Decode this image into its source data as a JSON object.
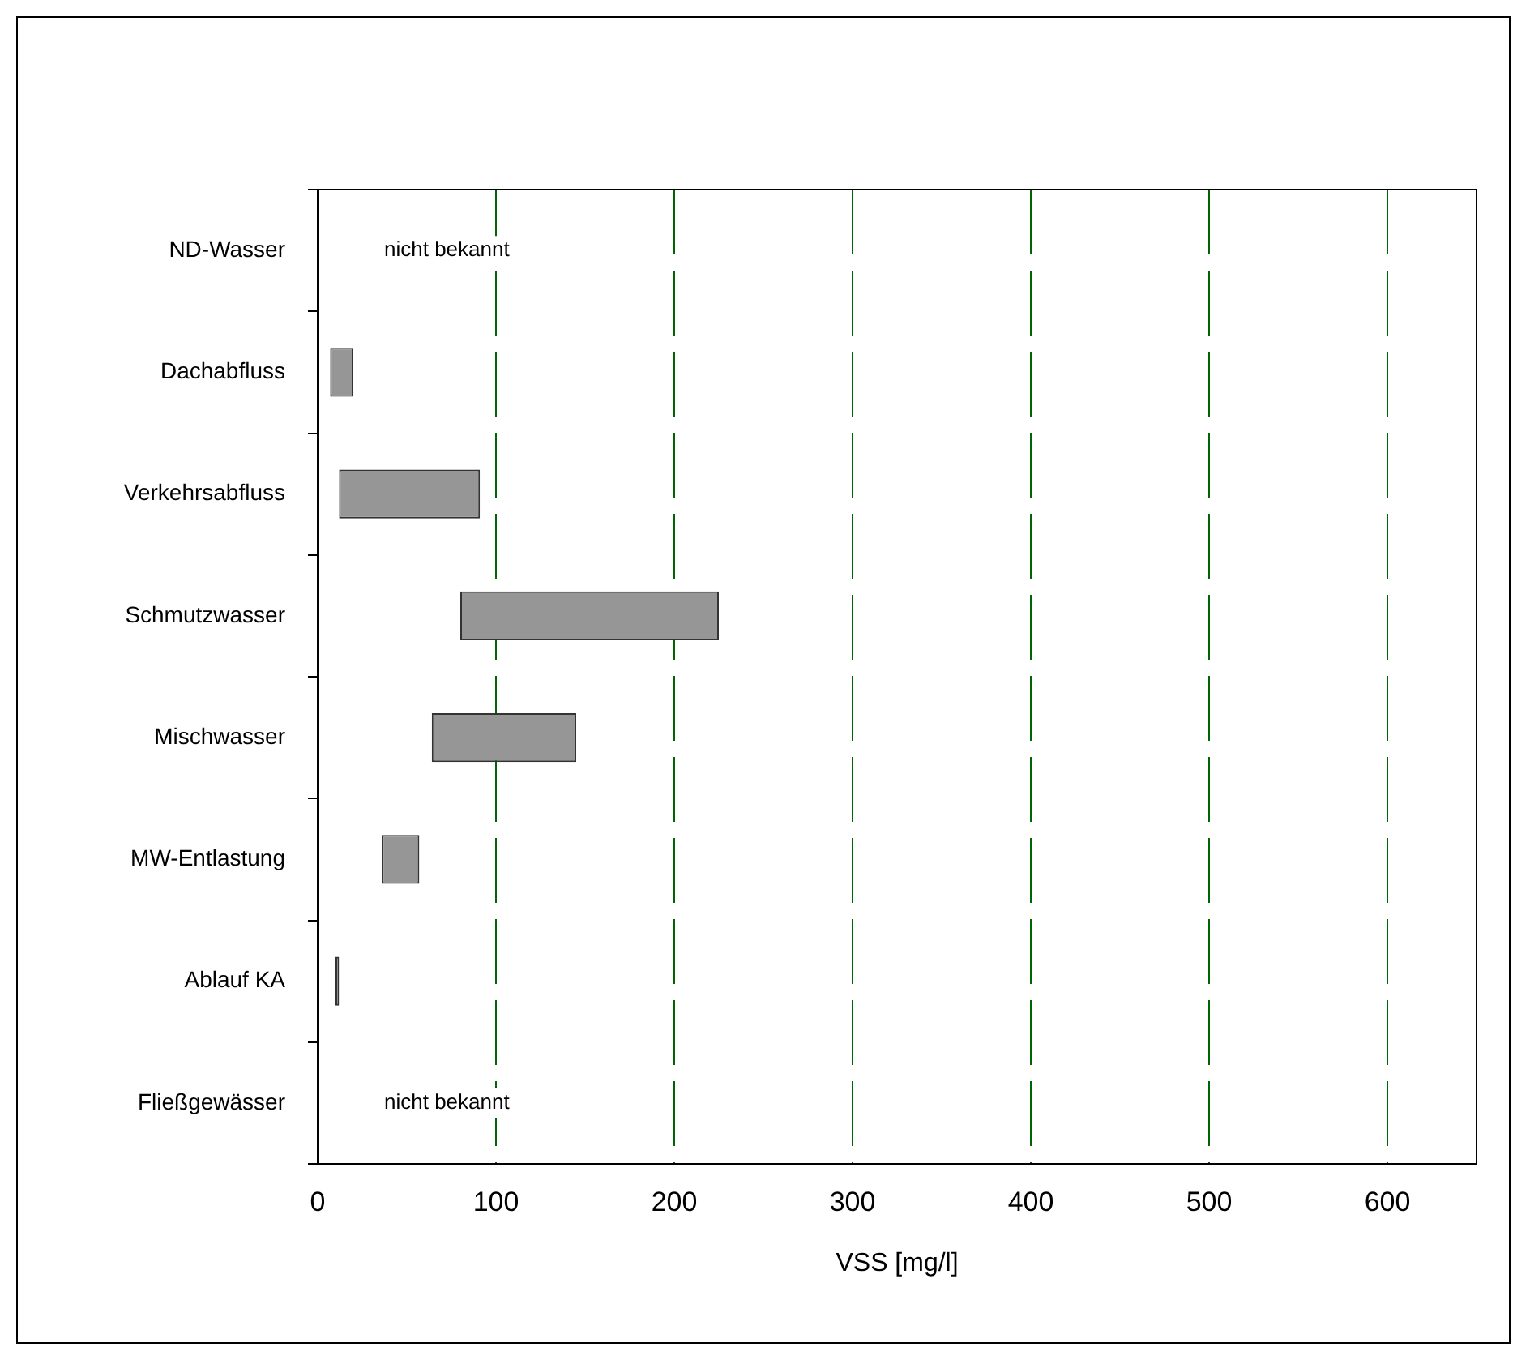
{
  "chart_data": {
    "type": "bar",
    "orientation": "horizontal",
    "xlabel": "VSS [mg/l]",
    "categories": [
      "ND-Wasser",
      "Dachabfluss",
      "Verkehrsabfluss",
      "Schmutzwasser",
      "Mischwasser",
      "MW-Entlastung",
      "Ablauf KA",
      "Fließgewässer"
    ],
    "base": [
      null,
      7,
      12,
      80,
      64,
      36,
      10,
      null
    ],
    "values": [
      null,
      13,
      79,
      145,
      81,
      21,
      2,
      null
    ],
    "color": "#969696",
    "xlim": [
      0,
      650
    ],
    "xticks": [
      0,
      100,
      200,
      300,
      400,
      500,
      600
    ],
    "grid": "x",
    "legend": false,
    "annotations": [
      "nicht bekannt",
      "nicht bekannt"
    ]
  }
}
